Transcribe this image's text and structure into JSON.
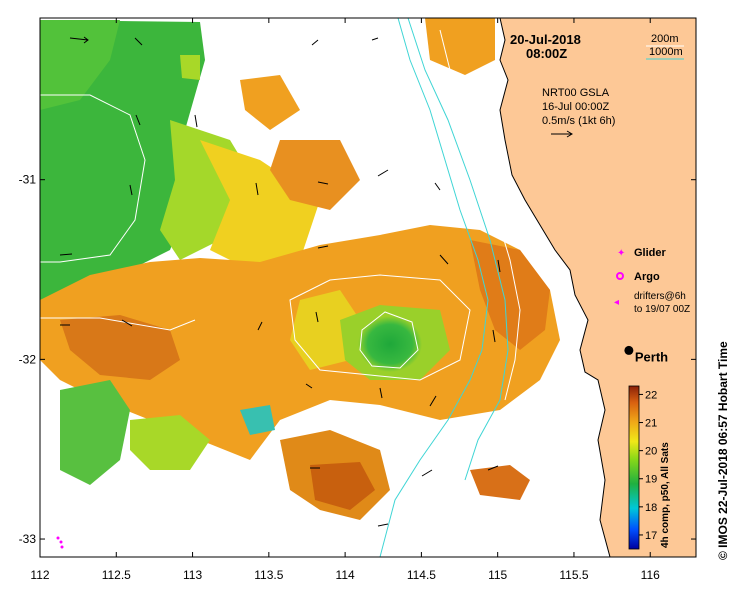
{
  "header": {
    "date": "20-Jul-2018",
    "time": "08:00Z"
  },
  "isobath_legend": {
    "label_200": "200m",
    "label_1000": "1000m",
    "color_200": "#ffffff",
    "color_1000": "#3fd5d5"
  },
  "current_info": {
    "line1": "NRT00 GSLA",
    "line2": "16-Jul 00:00Z",
    "line3": "0.5m/s (1kt 6h)"
  },
  "legend": {
    "glider": "Glider",
    "argo": "Argo",
    "drifters_line1": "drifters@6h",
    "drifters_line2": "to 19/07 00Z",
    "marker_color": "#ff00ff"
  },
  "city": {
    "name": "Perth",
    "lon": 115.86,
    "lat": -31.95
  },
  "colorbar": {
    "min": 16.5,
    "max": 22.3,
    "ticks": [
      "22",
      "21",
      "20",
      "19",
      "18",
      "17"
    ],
    "label": "4h comp, p50, All Sats"
  },
  "side_label": "© IMOS 22-Jul-2018 06:57 Hobart Time",
  "axes": {
    "x_ticks": [
      "112",
      "112.5",
      "113",
      "113.5",
      "114",
      "114.5",
      "115",
      "115.5",
      "116"
    ],
    "y_ticks": [
      "-31",
      "-32",
      "-33"
    ],
    "xlim": [
      112,
      116.3
    ],
    "ylim": [
      -33.1,
      -30.1
    ]
  },
  "colors": {
    "land": "#fdc896",
    "no_data": "#ffffff",
    "coast": "#000000"
  }
}
